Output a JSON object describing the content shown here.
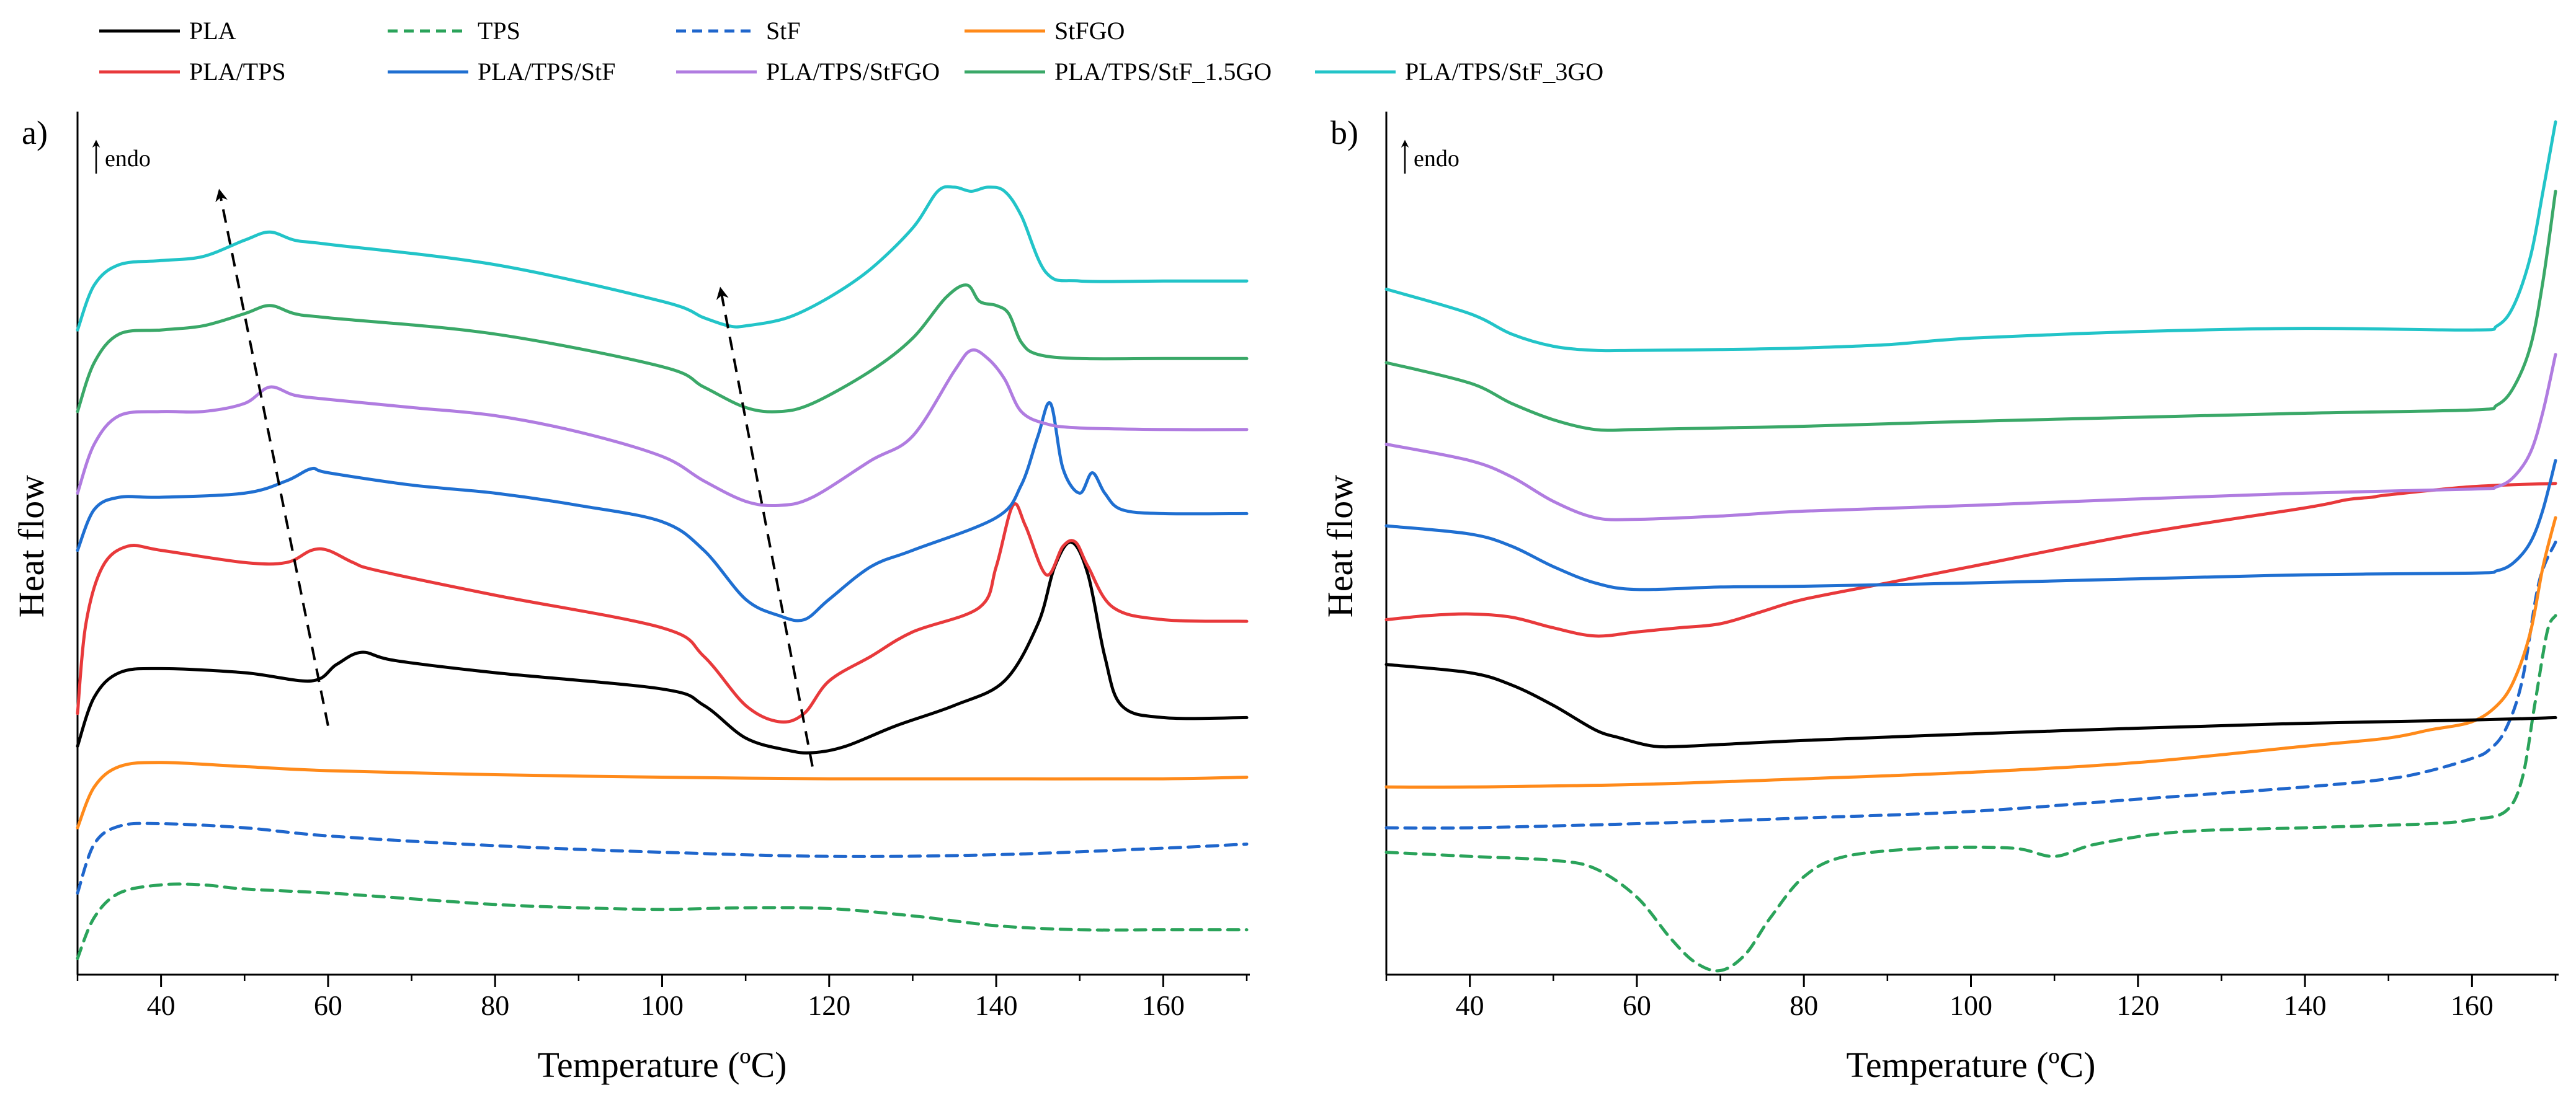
{
  "legend": {
    "entries": [
      {
        "label": "PLA",
        "color": "#000000",
        "dashed": false
      },
      {
        "label": "TPS",
        "color": "#2aa35a",
        "dashed": true
      },
      {
        "label": "StF",
        "color": "#1f66cc",
        "dashed": true
      },
      {
        "label": "StFGO",
        "color": "#ff8a1a",
        "dashed": false
      },
      {
        "label": "PLA/TPS",
        "color": "#e8393b",
        "dashed": false
      },
      {
        "label": "PLA/TPS/StF",
        "color": "#1f6fd1",
        "dashed": false
      },
      {
        "label": "PLA/TPS/StFGO",
        "color": "#b07ce0",
        "dashed": false
      },
      {
        "label": "PLA/TPS/StF_1.5GO",
        "color": "#3aa868",
        "dashed": false
      },
      {
        "label": "PLA/TPS/StF_3GO",
        "color": "#22c4c8",
        "dashed": false
      }
    ]
  },
  "chart_data": [
    {
      "type": "line",
      "panel_label": "a)",
      "title": "",
      "xlabel": "Temperature (ºC)",
      "ylabel": "Heat flow",
      "annotation": "endo",
      "xlim": [
        30,
        170
      ],
      "ylim": [
        0,
        10.5
      ],
      "xticks": [
        40,
        60,
        80,
        100,
        120,
        140,
        160
      ],
      "grid": false,
      "series": [
        {
          "name": "TPS",
          "color": "#2aa35a",
          "dashed": true,
          "x": [
            30,
            32,
            35,
            40,
            45,
            50,
            60,
            70,
            80,
            90,
            100,
            110,
            120,
            130,
            140,
            150,
            160,
            170
          ],
          "y": [
            0.2,
            0.7,
            1.0,
            1.1,
            1.1,
            1.05,
            1.0,
            0.93,
            0.86,
            0.82,
            0.8,
            0.82,
            0.81,
            0.72,
            0.6,
            0.55,
            0.55,
            0.55
          ]
        },
        {
          "name": "StF",
          "color": "#1f66cc",
          "dashed": true,
          "x": [
            30,
            32,
            35,
            40,
            50,
            60,
            80,
            100,
            120,
            140,
            160,
            170
          ],
          "y": [
            1.0,
            1.6,
            1.82,
            1.85,
            1.8,
            1.7,
            1.58,
            1.5,
            1.45,
            1.47,
            1.55,
            1.6
          ]
        },
        {
          "name": "StFGO",
          "color": "#ff8a1a",
          "dashed": false,
          "x": [
            30,
            32,
            35,
            40,
            50,
            60,
            80,
            100,
            120,
            140,
            160,
            170
          ],
          "y": [
            1.8,
            2.3,
            2.55,
            2.6,
            2.55,
            2.5,
            2.45,
            2.42,
            2.4,
            2.4,
            2.4,
            2.42
          ]
        },
        {
          "name": "PLA",
          "color": "#000000",
          "dashed": false,
          "x": [
            30,
            32,
            35,
            40,
            50,
            58,
            61,
            64,
            68,
            80,
            100,
            105,
            110,
            115,
            118,
            122,
            128,
            135,
            141,
            145,
            147,
            149,
            151,
            153,
            155,
            160,
            170
          ],
          "y": [
            2.8,
            3.4,
            3.7,
            3.75,
            3.7,
            3.6,
            3.8,
            3.95,
            3.85,
            3.7,
            3.5,
            3.3,
            2.9,
            2.75,
            2.72,
            2.8,
            3.05,
            3.3,
            3.6,
            4.3,
            5.0,
            5.3,
            4.9,
            3.9,
            3.3,
            3.15,
            3.15
          ]
        },
        {
          "name": "PLA/TPS",
          "color": "#e8393b",
          "dashed": false,
          "x": [
            30,
            31,
            33,
            36,
            40,
            50,
            55,
            58,
            60,
            63,
            66,
            80,
            100,
            105,
            110,
            114,
            117,
            120,
            125,
            130,
            138,
            140,
            142,
            143.5,
            146,
            148,
            149.5,
            151,
            154,
            160,
            170
          ],
          "y": [
            3.2,
            4.3,
            5.0,
            5.25,
            5.2,
            5.05,
            5.05,
            5.2,
            5.2,
            5.05,
            4.95,
            4.65,
            4.25,
            3.9,
            3.3,
            3.1,
            3.2,
            3.6,
            3.9,
            4.2,
            4.5,
            5.0,
            5.75,
            5.5,
            4.9,
            5.25,
            5.3,
            5.0,
            4.5,
            4.35,
            4.33
          ]
        },
        {
          "name": "PLA/TPS/StF",
          "color": "#1f6fd1",
          "dashed": false,
          "x": [
            30,
            32,
            35,
            40,
            50,
            55,
            58,
            60,
            70,
            80,
            90,
            100,
            105,
            110,
            114,
            117,
            120,
            125,
            130,
            140,
            143,
            145,
            146.5,
            148,
            150,
            151.5,
            153,
            155,
            160,
            170
          ],
          "y": [
            5.2,
            5.7,
            5.85,
            5.85,
            5.9,
            6.05,
            6.2,
            6.15,
            6.0,
            5.9,
            5.75,
            5.55,
            5.2,
            4.6,
            4.4,
            4.35,
            4.6,
            5.0,
            5.2,
            5.6,
            6.0,
            6.6,
            7.0,
            6.2,
            5.9,
            6.15,
            5.9,
            5.7,
            5.65,
            5.65
          ]
        },
        {
          "name": "PLA/TPS/StFGO",
          "color": "#b07ce0",
          "dashed": false,
          "x": [
            30,
            32,
            35,
            40,
            45,
            50,
            53,
            56,
            60,
            70,
            80,
            90,
            100,
            105,
            110,
            114,
            118,
            125,
            130,
            135,
            137,
            139,
            141,
            143,
            146,
            150,
            160,
            170
          ],
          "y": [
            5.9,
            6.5,
            6.85,
            6.9,
            6.9,
            7.0,
            7.2,
            7.1,
            7.05,
            6.95,
            6.85,
            6.65,
            6.35,
            6.05,
            5.8,
            5.75,
            5.85,
            6.3,
            6.6,
            7.4,
            7.65,
            7.55,
            7.3,
            6.9,
            6.75,
            6.7,
            6.68,
            6.68
          ]
        },
        {
          "name": "PLA/TPS/StF_1.5GO",
          "color": "#3aa868",
          "dashed": false,
          "x": [
            30,
            32,
            35,
            40,
            45,
            50,
            53,
            56,
            60,
            80,
            100,
            105,
            110,
            114,
            118,
            125,
            130,
            134,
            136.5,
            138,
            140,
            141.5,
            143,
            145,
            150,
            160,
            170
          ],
          "y": [
            6.9,
            7.5,
            7.85,
            7.9,
            7.95,
            8.1,
            8.2,
            8.1,
            8.05,
            7.85,
            7.45,
            7.2,
            6.95,
            6.9,
            7.0,
            7.4,
            7.8,
            8.3,
            8.45,
            8.25,
            8.2,
            8.1,
            7.75,
            7.6,
            7.55,
            7.55,
            7.55
          ]
        },
        {
          "name": "PLA/TPS/StF_3GO",
          "color": "#22c4c8",
          "dashed": false,
          "x": [
            30,
            32,
            35,
            40,
            45,
            50,
            53,
            56,
            60,
            80,
            100,
            105,
            108,
            110,
            115,
            120,
            125,
            130,
            133,
            135,
            137,
            139,
            141,
            143,
            146,
            150,
            160,
            170
          ],
          "y": [
            7.9,
            8.45,
            8.7,
            8.75,
            8.8,
            9.0,
            9.1,
            9.0,
            8.95,
            8.7,
            8.25,
            8.05,
            7.95,
            7.95,
            8.05,
            8.3,
            8.65,
            9.15,
            9.6,
            9.65,
            9.6,
            9.65,
            9.6,
            9.3,
            8.6,
            8.5,
            8.5,
            8.5
          ]
        }
      ],
      "arrows": [
        {
          "from": [
            60,
            3.05
          ],
          "to": [
            47,
            9.6
          ]
        },
        {
          "from": [
            118,
            2.55
          ],
          "to": [
            107,
            8.4
          ]
        }
      ]
    },
    {
      "type": "line",
      "panel_label": "b)",
      "title": "",
      "xlabel": "Temperature (ºC)",
      "ylabel": "Heat flow",
      "annotation": "endo",
      "xlim": [
        30,
        170
      ],
      "ylim": [
        0,
        10.5
      ],
      "xticks": [
        40,
        60,
        80,
        100,
        120,
        140,
        160
      ],
      "grid": false,
      "series": [
        {
          "name": "TPS",
          "color": "#2aa35a",
          "dashed": true,
          "x": [
            30,
            40,
            50,
            55,
            60,
            64,
            67,
            70,
            73,
            76,
            80,
            85,
            95,
            105,
            110,
            115,
            125,
            140,
            155,
            160,
            164,
            166,
            167.5,
            169,
            170
          ],
          "y": [
            1.5,
            1.45,
            1.4,
            1.3,
            0.95,
            0.45,
            0.15,
            0.05,
            0.25,
            0.7,
            1.2,
            1.45,
            1.55,
            1.55,
            1.45,
            1.6,
            1.75,
            1.8,
            1.85,
            1.9,
            2.0,
            2.4,
            3.3,
            4.2,
            4.4
          ]
        },
        {
          "name": "StF",
          "color": "#1f66cc",
          "dashed": true,
          "x": [
            30,
            40,
            60,
            80,
            100,
            120,
            140,
            150,
            155,
            160,
            162,
            164,
            166,
            168,
            170
          ],
          "y": [
            1.8,
            1.8,
            1.85,
            1.92,
            2.0,
            2.15,
            2.3,
            2.4,
            2.5,
            2.65,
            2.75,
            3.0,
            3.6,
            4.8,
            5.3
          ]
        },
        {
          "name": "StFGO",
          "color": "#ff8a1a",
          "dashed": false,
          "x": [
            30,
            40,
            60,
            80,
            100,
            120,
            140,
            150,
            155,
            160,
            163,
            165,
            167,
            168.5,
            170
          ],
          "y": [
            2.3,
            2.3,
            2.33,
            2.4,
            2.48,
            2.6,
            2.8,
            2.9,
            3.0,
            3.1,
            3.3,
            3.6,
            4.2,
            5.0,
            5.6
          ]
        },
        {
          "name": "PLA",
          "color": "#000000",
          "dashed": false,
          "x": [
            30,
            40,
            45,
            50,
            55,
            58,
            62,
            66,
            70,
            80,
            100,
            120,
            140,
            160,
            170
          ],
          "y": [
            3.8,
            3.7,
            3.55,
            3.3,
            3.0,
            2.9,
            2.8,
            2.8,
            2.82,
            2.87,
            2.95,
            3.02,
            3.08,
            3.12,
            3.15
          ]
        },
        {
          "name": "PLA/TPS",
          "color": "#e8393b",
          "dashed": false,
          "x": [
            30,
            35,
            40,
            45,
            50,
            55,
            60,
            65,
            70,
            75,
            80,
            90,
            100,
            120,
            140,
            145,
            148,
            150,
            160,
            170
          ],
          "y": [
            4.35,
            4.4,
            4.42,
            4.38,
            4.25,
            4.15,
            4.2,
            4.25,
            4.3,
            4.45,
            4.6,
            4.8,
            5.0,
            5.4,
            5.72,
            5.82,
            5.85,
            5.88,
            5.98,
            6.02
          ]
        },
        {
          "name": "PLA/TPS/StF",
          "color": "#1f6fd1",
          "dashed": false,
          "x": [
            30,
            40,
            45,
            50,
            55,
            60,
            70,
            80,
            100,
            120,
            140,
            160,
            163,
            165,
            167,
            168.5,
            170
          ],
          "y": [
            5.5,
            5.4,
            5.25,
            5.0,
            4.8,
            4.72,
            4.75,
            4.76,
            4.8,
            4.85,
            4.9,
            4.92,
            4.95,
            5.05,
            5.3,
            5.7,
            6.3
          ]
        },
        {
          "name": "PLA/TPS/StFGO",
          "color": "#b07ce0",
          "dashed": false,
          "x": [
            30,
            40,
            45,
            50,
            55,
            60,
            70,
            80,
            100,
            120,
            140,
            160,
            163,
            165,
            167,
            168.5,
            170
          ],
          "y": [
            6.5,
            6.3,
            6.1,
            5.8,
            5.6,
            5.58,
            5.62,
            5.68,
            5.75,
            5.83,
            5.9,
            5.95,
            5.98,
            6.1,
            6.4,
            6.9,
            7.6
          ]
        },
        {
          "name": "PLA/TPS/StF_1.5GO",
          "color": "#3aa868",
          "dashed": false,
          "x": [
            30,
            40,
            45,
            50,
            55,
            60,
            70,
            80,
            100,
            120,
            140,
            160,
            163,
            165,
            167,
            168.5,
            170
          ],
          "y": [
            7.5,
            7.25,
            7.0,
            6.8,
            6.68,
            6.68,
            6.7,
            6.72,
            6.78,
            6.83,
            6.88,
            6.92,
            6.98,
            7.2,
            7.7,
            8.5,
            9.6
          ]
        },
        {
          "name": "PLA/TPS/StF_3GO",
          "color": "#22c4c8",
          "dashed": false,
          "x": [
            30,
            40,
            45,
            50,
            55,
            60,
            70,
            80,
            90,
            100,
            120,
            140,
            160,
            163,
            165,
            167,
            168.5,
            170
          ],
          "y": [
            8.4,
            8.1,
            7.85,
            7.7,
            7.65,
            7.65,
            7.66,
            7.68,
            7.72,
            7.8,
            7.88,
            7.92,
            7.9,
            7.95,
            8.2,
            8.8,
            9.6,
            10.45
          ]
        }
      ],
      "arrows": []
    }
  ]
}
